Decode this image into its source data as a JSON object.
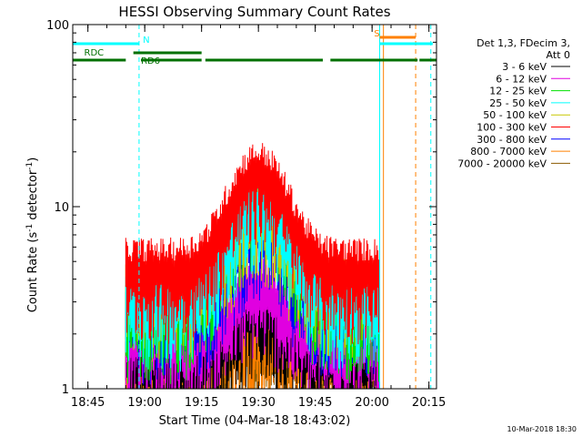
{
  "chart_data": {
    "type": "line",
    "title": "HESSI Observing Summary Count Rates",
    "xlabel": "Start Time (04-Mar-18 18:43:02)",
    "ylabel_main": "Count Rate (s",
    "ylabel_sup1": "-1",
    "ylabel_mid": " detector",
    "ylabel_sup2": "-1",
    "ylabel_end": ")",
    "yscale": "log",
    "ylim": [
      1,
      100
    ],
    "xlim_minutes": [
      -2,
      94
    ],
    "x_tick_labels": [
      "18:45",
      "19:00",
      "19:15",
      "19:30",
      "19:45",
      "20:00",
      "20:15"
    ],
    "x_tick_minutes": [
      2,
      17,
      32,
      47,
      62,
      77,
      92
    ],
    "y_tick_labels": [
      "1",
      "10",
      "100"
    ],
    "y_tick_values": [
      1,
      10,
      100
    ],
    "legend_header": [
      "Det 1,3, FDecim 3,",
      "Att 0"
    ],
    "series": [
      {
        "name": "3 - 6 keV",
        "color": "#000000",
        "base": 1.6,
        "peak": 3.0
      },
      {
        "name": "6 - 12 keV",
        "color": "#e000e0",
        "base": 2.0,
        "peak": 4.0
      },
      {
        "name": "12 - 25 keV",
        "color": "#00e000",
        "base": 3.0,
        "peak": 13.0
      },
      {
        "name": "25 - 50 keV",
        "color": "#00ffff",
        "base": 3.5,
        "peak": 12.0
      },
      {
        "name": "50 - 100 keV",
        "color": "#c8c800",
        "base": 4.0,
        "peak": 10.0
      },
      {
        "name": "100 - 300 keV",
        "color": "#ff0000",
        "base": 5.0,
        "peak": 17.0
      },
      {
        "name": "300 - 800 keV",
        "color": "#0000ff",
        "base": 3.0,
        "peak": 8.0
      },
      {
        "name": "800 - 7000 keV",
        "color": "#ff8000",
        "base": 1.8,
        "peak": 2.2
      },
      {
        "name": "7000 - 20000 keV",
        "color": "#8b5a00",
        "base": 1.5,
        "peak": 2.0
      }
    ],
    "data_span_minutes": [
      12.0,
      79.0
    ],
    "peak_minute": 47,
    "flags": [
      {
        "label": "N",
        "color": "#00ffff",
        "segments": [
          [
            -2,
            15.5
          ],
          [
            79,
            93
          ]
        ],
        "label_minute": 16.5
      },
      {
        "label": "S",
        "color": "#ff8000",
        "segments": [
          [
            79,
            88.5
          ]
        ],
        "label_minute": 77.5
      },
      {
        "label": "RDC",
        "color": "#007000",
        "segments": [
          [
            -2,
            12
          ],
          [
            66,
            89
          ],
          [
            89.5,
            94
          ]
        ],
        "label_minute": 1,
        "second_segments": [
          [
            16,
            32
          ],
          [
            33,
            64
          ]
        ]
      },
      {
        "label": "RD6",
        "color": "#007000",
        "segments": [
          [
            14,
            32
          ]
        ],
        "label_minute": 16
      }
    ],
    "vlines": [
      {
        "minute": -2,
        "color": "#00ffff",
        "dashed": false
      },
      {
        "minute": 15.5,
        "color": "#00ffff",
        "dashed": true
      },
      {
        "minute": 79,
        "color": "#00ffff",
        "dashed": false
      },
      {
        "minute": 80,
        "color": "#ff8000",
        "dashed": false
      },
      {
        "minute": 88.5,
        "color": "#ff8000",
        "dashed": true
      },
      {
        "minute": 92.5,
        "color": "#00ffff",
        "dashed": true
      }
    ]
  },
  "footer_date": "10-Mar-2018 18:30"
}
